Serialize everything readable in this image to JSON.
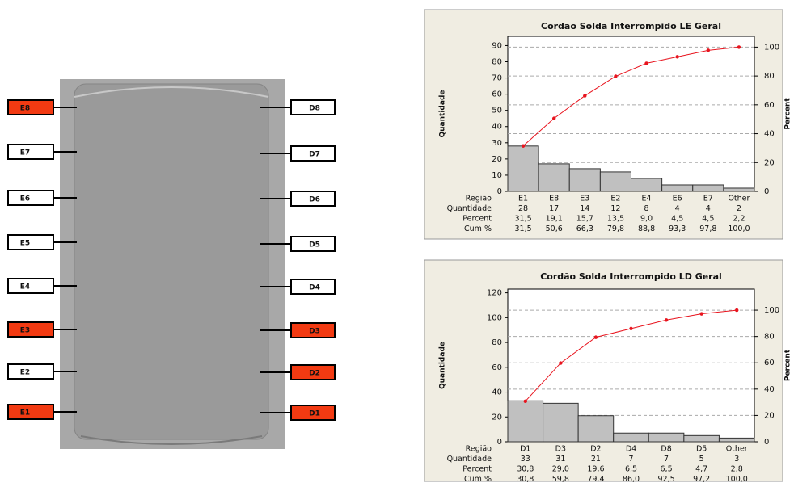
{
  "diagram": {
    "highlight_color": "#f23a12",
    "left": [
      {
        "label": "E8",
        "highlight": true
      },
      {
        "label": "E7",
        "highlight": false
      },
      {
        "label": "E6",
        "highlight": false
      },
      {
        "label": "E5",
        "highlight": false
      },
      {
        "label": "E4",
        "highlight": false
      },
      {
        "label": "E3",
        "highlight": true
      },
      {
        "label": "E2",
        "highlight": false
      },
      {
        "label": "E1",
        "highlight": true
      }
    ],
    "right": [
      {
        "label": "D8",
        "highlight": false
      },
      {
        "label": "D7",
        "highlight": false
      },
      {
        "label": "D6",
        "highlight": false
      },
      {
        "label": "D5",
        "highlight": false
      },
      {
        "label": "D4",
        "highlight": false
      },
      {
        "label": "D3",
        "highlight": true
      },
      {
        "label": "D2",
        "highlight": true
      },
      {
        "label": "D1",
        "highlight": true
      }
    ]
  },
  "chart_data": [
    {
      "type": "pareto",
      "title": "Cordão Solda Interrompido LE Geral",
      "y_label": "Quantidade",
      "y2_label": "Percent",
      "row_labels": [
        "Região",
        "Quantidade",
        "Percent",
        "Cum %"
      ],
      "categories": [
        "E1",
        "E8",
        "E3",
        "E2",
        "E4",
        "E6",
        "E7",
        "Other"
      ],
      "series": [
        {
          "name": "Quantidade",
          "color": "#c0c0c0",
          "values": [
            28,
            17,
            14,
            12,
            8,
            4,
            4,
            2
          ]
        },
        {
          "name": "Cum %",
          "color": "#e8141e",
          "axis": "y2",
          "values": [
            31.5,
            50.6,
            66.3,
            79.8,
            88.8,
            93.3,
            97.8,
            100.0
          ],
          "value_labels": [
            "31,5",
            "50,6",
            "66,3",
            "79,8",
            "88,8",
            "93,3",
            "97,8",
            "100,0"
          ]
        }
      ],
      "percent": {
        "values": [
          31.5,
          19.1,
          15.7,
          13.5,
          9.0,
          4.5,
          4.5,
          2.2
        ],
        "value_labels": [
          "31,5",
          "19,1",
          "15,7",
          "13,5",
          "9,0",
          "4,5",
          "4,5",
          "2,2"
        ]
      },
      "ylim": [
        0,
        95.7
      ],
      "yticks": [
        0,
        10,
        20,
        30,
        40,
        50,
        60,
        70,
        80,
        90
      ],
      "y2lim": [
        0,
        107.5
      ],
      "y2ticks": [
        0,
        20,
        40,
        60,
        80,
        100
      ],
      "grid": "y2"
    },
    {
      "type": "pareto",
      "title": "Cordão Solda Interrompido LD Geral",
      "y_label": "Quantidade",
      "y2_label": "Percent",
      "row_labels": [
        "Região",
        "Quantidade",
        "Percent",
        "Cum %"
      ],
      "categories": [
        "D1",
        "D3",
        "D2",
        "D4",
        "D8",
        "D5",
        "Other"
      ],
      "series": [
        {
          "name": "Quantidade",
          "color": "#c0c0c0",
          "values": [
            33,
            31,
            21,
            7,
            7,
            5,
            3
          ]
        },
        {
          "name": "Cum %",
          "color": "#e8141e",
          "axis": "y2",
          "values": [
            30.8,
            59.8,
            79.4,
            86.0,
            92.5,
            97.2,
            100.0
          ],
          "value_labels": [
            "30,8",
            "59,8",
            "79,4",
            "86,0",
            "92,5",
            "97,2",
            "100,0"
          ]
        }
      ],
      "percent": {
        "values": [
          30.8,
          29.0,
          19.6,
          6.5,
          6.5,
          4.7,
          2.8
        ],
        "value_labels": [
          "30,8",
          "29,0",
          "19,6",
          "6,5",
          "6,5",
          "4,7",
          "2,8"
        ]
      },
      "ylim": [
        0,
        123
      ],
      "yticks": [
        0,
        20,
        40,
        60,
        80,
        100,
        120
      ],
      "y2lim": [
        0,
        116
      ],
      "y2ticks": [
        0,
        20,
        40,
        60,
        80,
        100
      ],
      "grid": "y2"
    }
  ]
}
